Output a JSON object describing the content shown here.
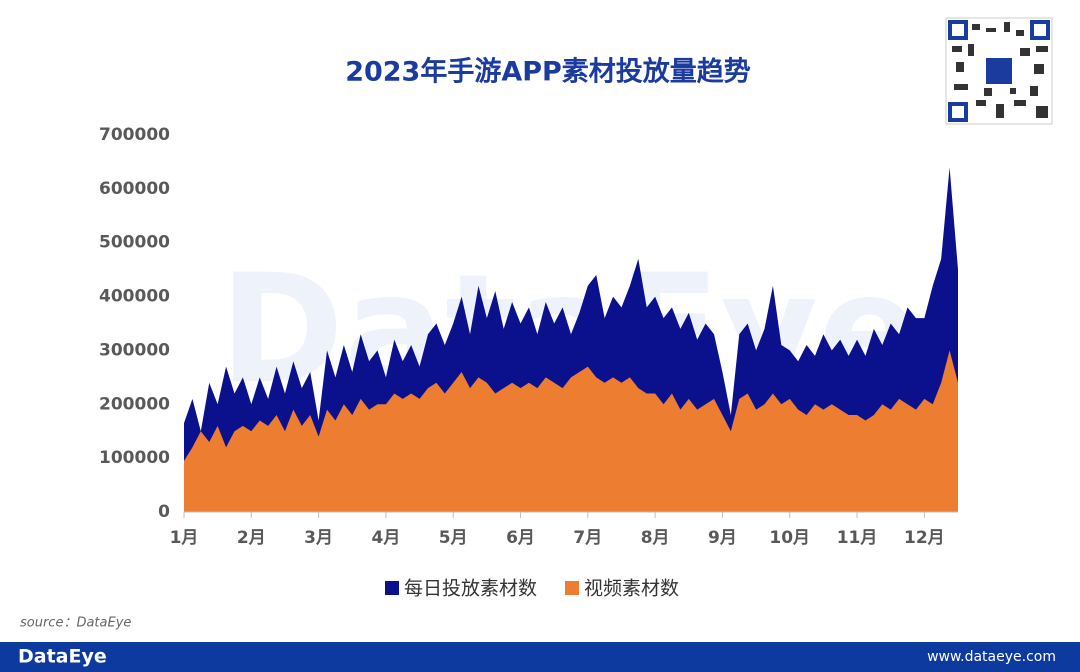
{
  "chart_data": {
    "type": "area",
    "title": "2023年手游APP素材投放量趋势",
    "categories": [
      "1月",
      null,
      null,
      null,
      null,
      null,
      null,
      null,
      "2月",
      null,
      null,
      null,
      null,
      null,
      null,
      null,
      "3月",
      null,
      null,
      null,
      null,
      null,
      null,
      null,
      "4月",
      null,
      null,
      null,
      null,
      null,
      null,
      null,
      "5月",
      null,
      null,
      null,
      null,
      null,
      null,
      null,
      "6月",
      null,
      null,
      null,
      null,
      null,
      null,
      null,
      "7月",
      null,
      null,
      null,
      null,
      null,
      null,
      null,
      "8月",
      null,
      null,
      null,
      null,
      null,
      null,
      null,
      "9月",
      null,
      null,
      null,
      null,
      null,
      null,
      null,
      "10月",
      null,
      null,
      null,
      null,
      null,
      null,
      null,
      "11月",
      null,
      null,
      null,
      null,
      null,
      null,
      null,
      "12月",
      null,
      null,
      null,
      null
    ],
    "series": [
      {
        "name": "每日投放素材数",
        "color": "#0b108c",
        "values": [
          165000,
          210000,
          150000,
          240000,
          200000,
          270000,
          220000,
          250000,
          200000,
          250000,
          210000,
          270000,
          220000,
          280000,
          230000,
          260000,
          170000,
          300000,
          250000,
          310000,
          260000,
          330000,
          280000,
          300000,
          250000,
          320000,
          280000,
          310000,
          270000,
          330000,
          350000,
          310000,
          350000,
          400000,
          330000,
          420000,
          360000,
          410000,
          340000,
          390000,
          350000,
          380000,
          330000,
          390000,
          350000,
          380000,
          330000,
          370000,
          420000,
          440000,
          360000,
          400000,
          380000,
          420000,
          470000,
          380000,
          400000,
          360000,
          380000,
          340000,
          370000,
          320000,
          350000,
          330000,
          260000,
          180000,
          330000,
          350000,
          300000,
          340000,
          420000,
          310000,
          300000,
          280000,
          310000,
          290000,
          330000,
          300000,
          320000,
          290000,
          320000,
          290000,
          340000,
          310000,
          350000,
          330000,
          380000,
          360000,
          360000,
          420000,
          470000,
          640000,
          450000
        ]
      },
      {
        "name": "视频素材数",
        "color": "#ed7d31",
        "values": [
          95000,
          120000,
          150000,
          130000,
          160000,
          120000,
          150000,
          160000,
          150000,
          170000,
          160000,
          180000,
          150000,
          190000,
          160000,
          180000,
          140000,
          190000,
          170000,
          200000,
          180000,
          210000,
          190000,
          200000,
          200000,
          220000,
          210000,
          220000,
          210000,
          230000,
          240000,
          220000,
          240000,
          260000,
          230000,
          250000,
          240000,
          220000,
          230000,
          240000,
          230000,
          240000,
          230000,
          250000,
          240000,
          230000,
          250000,
          260000,
          270000,
          250000,
          240000,
          250000,
          240000,
          250000,
          230000,
          220000,
          220000,
          200000,
          220000,
          190000,
          210000,
          190000,
          200000,
          210000,
          180000,
          150000,
          210000,
          220000,
          190000,
          200000,
          220000,
          200000,
          210000,
          190000,
          180000,
          200000,
          190000,
          200000,
          190000,
          180000,
          180000,
          170000,
          180000,
          200000,
          190000,
          210000,
          200000,
          190000,
          210000,
          200000,
          240000,
          300000,
          240000
        ]
      }
    ],
    "ylim": [
      0,
      700000
    ],
    "yticks": [
      0,
      100000,
      200000,
      300000,
      400000,
      500000,
      600000,
      700000
    ],
    "watermark": "DataEye",
    "source": "source：DataEye"
  },
  "footer": {
    "brand": "DataEye",
    "url": "www.dataeye.com"
  }
}
